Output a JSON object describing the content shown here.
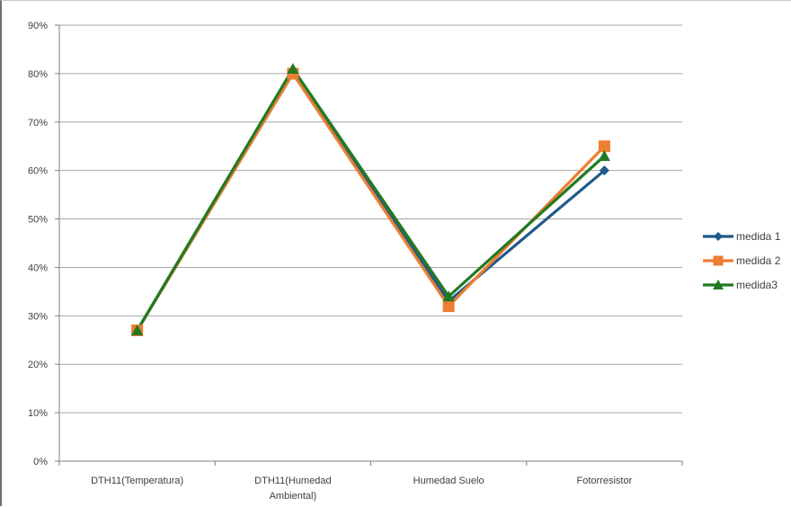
{
  "chart_data": {
    "type": "line",
    "title": "",
    "xlabel": "",
    "ylabel": "",
    "categories": [
      [
        "DTH11(Temperatura)"
      ],
      [
        "DTH11(Humedad",
        "Ambiental)"
      ],
      [
        "Humedad Suelo"
      ],
      [
        "Fotorresistor"
      ]
    ],
    "ylim": [
      0,
      90
    ],
    "yticks": [
      "0%",
      "10%",
      "20%",
      "30%",
      "40%",
      "50%",
      "60%",
      "70%",
      "80%",
      "90%"
    ],
    "grid": true,
    "legend_position": "right",
    "series": [
      {
        "name": "medida 1",
        "color": "#1f5a8a",
        "marker": "diamond",
        "values": [
          27,
          80,
          33,
          60
        ]
      },
      {
        "name": "medida 2",
        "color": "#ed7d31",
        "marker": "square",
        "values": [
          27,
          80,
          32,
          65
        ]
      },
      {
        "name": "medida3",
        "color": "#217a21",
        "marker": "triangle",
        "values": [
          27,
          81,
          34,
          63
        ]
      }
    ]
  }
}
